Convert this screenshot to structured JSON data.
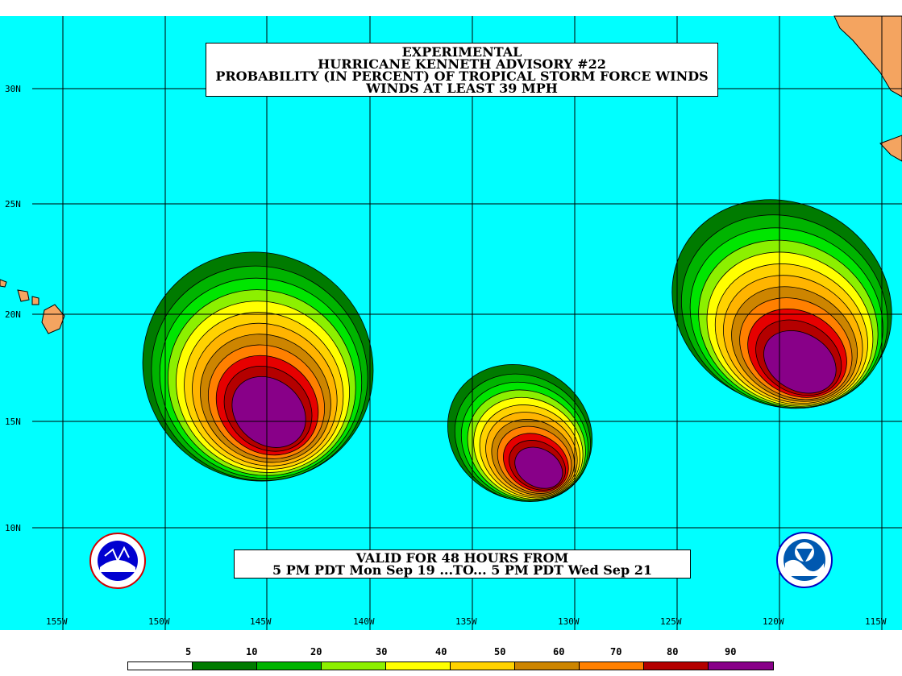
{
  "title": {
    "lines": [
      "EXPERIMENTAL",
      "HURRICANE KENNETH ADVISORY #22",
      "PROBABILITY (IN PERCENT) OF TROPICAL STORM FORCE WINDS",
      "WINDS AT LEAST 39 MPH"
    ]
  },
  "validity": {
    "line1": "VALID FOR 48 HOURS FROM",
    "line2": "5 PM PDT Mon Sep 19 ...TO... 5 PM PDT Wed Sep 21"
  },
  "latitude_labels": [
    "30N",
    "25N",
    "20N",
    "15N",
    "10N"
  ],
  "longitude_labels": [
    "155W",
    "150W",
    "145W",
    "140W",
    "135W",
    "130W",
    "125W",
    "120W",
    "115W"
  ],
  "legend": {
    "values": [
      "5",
      "10",
      "20",
      "30",
      "40",
      "50",
      "60",
      "70",
      "80",
      "90"
    ],
    "colors": [
      "#ffffff",
      "#007b00",
      "#00b400",
      "#00e600",
      "#8cf000",
      "#ffff00",
      "#ffd200",
      "#ffb400",
      "#cd8500",
      "#ff8000",
      "#e60000",
      "#b40000",
      "#880088"
    ]
  },
  "colors": {
    "ocean": "#00ffff",
    "land": "#f4a460",
    "grid": "#000000"
  },
  "logos": {
    "left": "national-weather-service-logo",
    "right": "noaa-logo"
  }
}
